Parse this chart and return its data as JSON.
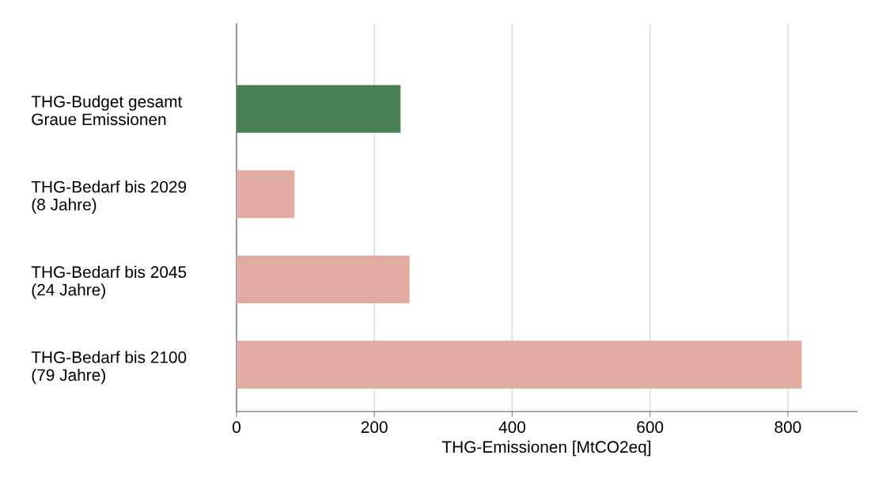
{
  "chart_data": {
    "type": "bar",
    "orientation": "horizontal",
    "categories": [
      "THG-Budget gesamt\nGraue Emissionen",
      "THG-Bedarf bis 2029\n(8 Jahre)",
      "THG-Bedarf bis 2045\n(24 Jahre)",
      "THG-Bedarf bis 2100\n(79 Jahre)"
    ],
    "values": [
      238,
      84,
      251,
      820
    ],
    "colors": [
      "#4a7f55",
      "#e0aba1",
      "#e0aba1",
      "#e0aba1"
    ],
    "xlabel": "THG-Emissionen [MtCO2eq]",
    "xlim": [
      0,
      900
    ],
    "xticks": [
      0,
      200,
      400,
      600,
      800
    ],
    "grid": "x"
  }
}
